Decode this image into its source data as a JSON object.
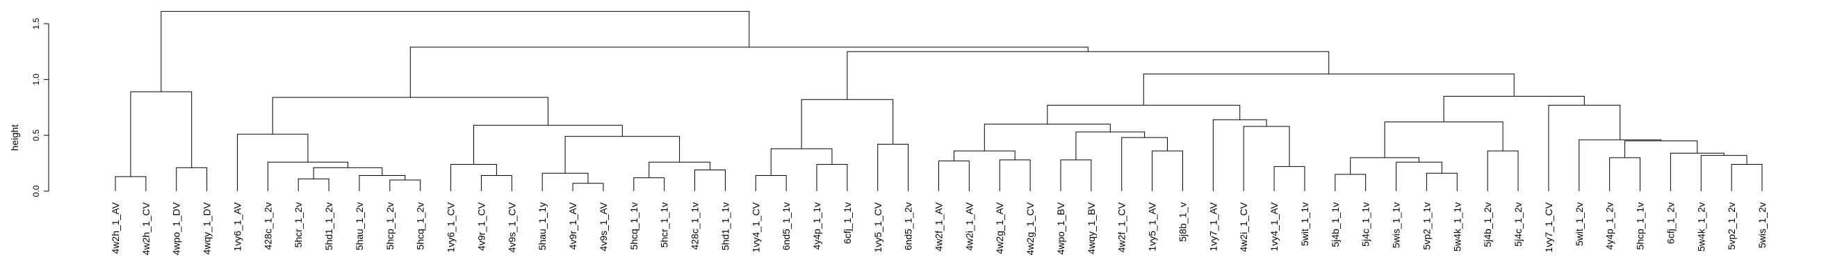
{
  "chart_data": {
    "type": "dendrogram",
    "title": "",
    "xlabel": "",
    "ylabel": "height",
    "ylim": [
      0,
      1.65
    ],
    "yticks": [
      {
        "value": 0.0,
        "label": "0.0"
      },
      {
        "value": 0.5,
        "label": "0.5"
      },
      {
        "value": 1.0,
        "label": "1.0"
      },
      {
        "value": 1.5,
        "label": "1.5"
      }
    ],
    "grid": false,
    "leaves": [
      "4w2h_1_AV",
      "4w2h_1_CV",
      "4wpo_1_DV",
      "4wqy_1_DV",
      "1vy6_1_AV",
      "428c_1_2v",
      "5hcr_1_2v",
      "5hd1_1_2v",
      "5hau_1_2v",
      "5hcp_1_2v",
      "5hcq_1_2v",
      "1vy6_1_CV",
      "4v9r_1_CV",
      "4v9s_1_CV",
      "5hau_1_1y",
      "4v9r_1_AV",
      "4v9s_1_AV",
      "5hcq_1_1v",
      "5hcr_1_1v",
      "428c_1_1v",
      "5hd1_1_1v",
      "1vy4_1_CV",
      "6nd5_1_1v",
      "4y4p_1_1v",
      "6cfj_1_1v",
      "1vy5_1_CV",
      "6nd5_1_2v",
      "4w2f_1_AV",
      "4w2i_1_AV",
      "4w2g_1_AV",
      "4w2g_1_CV",
      "4wpo_1_BV",
      "4wqy_1_BV",
      "4w2f_1_CV",
      "1vy5_1_AV",
      "5j8b_1_v",
      "1vy7_1_AV",
      "4w2i_1_CV",
      "1vy4_1_AV",
      "5wit_1_1v",
      "5j4b_1_1v",
      "5j4c_1_1v",
      "5wis_1_1v",
      "5vp2_1_1v",
      "5w4k_1_1v",
      "5j4b_1_2v",
      "5j4c_1_2v",
      "1vy7_1_CV",
      "5wit_1_2v",
      "4y4p_1_2v",
      "5hcp_1_1v",
      "6cfj_1_2v",
      "5w4k_1_2v",
      "5vp2_1_2v",
      "5wis_1_2v"
    ],
    "merges": [
      {
        "id": "m1",
        "a": "L0",
        "b": "L1",
        "height": 0.13
      },
      {
        "id": "m2",
        "a": "L2",
        "b": "L3",
        "height": 0.21
      },
      {
        "id": "m3",
        "a": "m1",
        "b": "m2",
        "height": 0.89
      },
      {
        "id": "m4",
        "a": "L6",
        "b": "L7",
        "height": 0.11
      },
      {
        "id": "m5",
        "a": "L10",
        "b": "L9",
        "height": 0.1
      },
      {
        "id": "m6",
        "a": "L8",
        "b": "m5",
        "height": 0.14
      },
      {
        "id": "m7",
        "a": "m4",
        "b": "m6",
        "height": 0.21
      },
      {
        "id": "m8",
        "a": "L5",
        "b": "m7",
        "height": 0.26
      },
      {
        "id": "m9",
        "a": "L4",
        "b": "m8",
        "height": 0.51
      },
      {
        "id": "m10",
        "a": "L12",
        "b": "L13",
        "height": 0.14
      },
      {
        "id": "m11",
        "a": "L11",
        "b": "m10",
        "height": 0.24
      },
      {
        "id": "m12",
        "a": "L15",
        "b": "L16",
        "height": 0.07
      },
      {
        "id": "m13",
        "a": "L14",
        "b": "m12",
        "height": 0.16
      },
      {
        "id": "m14",
        "a": "L17",
        "b": "L18",
        "height": 0.12
      },
      {
        "id": "m15",
        "a": "L19",
        "b": "L20",
        "height": 0.19
      },
      {
        "id": "m16",
        "a": "m14",
        "b": "m15",
        "height": 0.26
      },
      {
        "id": "m17",
        "a": "m13",
        "b": "m16",
        "height": 0.49
      },
      {
        "id": "m18",
        "a": "m11",
        "b": "m17",
        "height": 0.59
      },
      {
        "id": "m19",
        "a": "m9",
        "b": "m18",
        "height": 0.84
      },
      {
        "id": "m20",
        "a": "L21",
        "b": "L22",
        "height": 0.14
      },
      {
        "id": "m21",
        "a": "L23",
        "b": "L24",
        "height": 0.24
      },
      {
        "id": "m22",
        "a": "m20",
        "b": "m21",
        "height": 0.38
      },
      {
        "id": "m23",
        "a": "L25",
        "b": "L26",
        "height": 0.42
      },
      {
        "id": "m24",
        "a": "m22",
        "b": "m23",
        "height": 0.82
      },
      {
        "id": "m25",
        "a": "L27",
        "b": "L28",
        "height": 0.27
      },
      {
        "id": "m26",
        "a": "L29",
        "b": "L30",
        "height": 0.28
      },
      {
        "id": "m27",
        "a": "m25",
        "b": "m26",
        "height": 0.36
      },
      {
        "id": "m28",
        "a": "L31",
        "b": "L32",
        "height": 0.28
      },
      {
        "id": "m29",
        "a": "L34",
        "b": "L35",
        "height": 0.36
      },
      {
        "id": "m30",
        "a": "L33",
        "b": "m29",
        "height": 0.48
      },
      {
        "id": "m31",
        "a": "m28",
        "b": "m30",
        "height": 0.53
      },
      {
        "id": "m32",
        "a": "m27",
        "b": "m31",
        "height": 0.6
      },
      {
        "id": "m33",
        "a": "L38",
        "b": "L39",
        "height": 0.22
      },
      {
        "id": "m34",
        "a": "L37",
        "b": "m33",
        "height": 0.58
      },
      {
        "id": "m35",
        "a": "L36",
        "b": "m34",
        "height": 0.64
      },
      {
        "id": "m36",
        "a": "m32",
        "b": "m35",
        "height": 0.77
      },
      {
        "id": "m37",
        "a": "L40",
        "b": "L41",
        "height": 0.15
      },
      {
        "id": "m38",
        "a": "L43",
        "b": "L44",
        "height": 0.16
      },
      {
        "id": "m39",
        "a": "L42",
        "b": "m38",
        "height": 0.26
      },
      {
        "id": "m40",
        "a": "m37",
        "b": "m39",
        "height": 0.3
      },
      {
        "id": "m41",
        "a": "L45",
        "b": "L46",
        "height": 0.36
      },
      {
        "id": "m42",
        "a": "m40",
        "b": "m41",
        "height": 0.62
      },
      {
        "id": "m43",
        "a": "L49",
        "b": "L50",
        "height": 0.3
      },
      {
        "id": "m44",
        "a": "L53",
        "b": "L54",
        "height": 0.24
      },
      {
        "id": "m45",
        "a": "L52",
        "b": "m44",
        "height": 0.32
      },
      {
        "id": "m46",
        "a": "L51",
        "b": "m45",
        "height": 0.34
      },
      {
        "id": "m47",
        "a": "m43",
        "b": "m46",
        "height": 0.45
      },
      {
        "id": "m48",
        "a": "L48",
        "b": "m47",
        "height": 0.46
      },
      {
        "id": "m49",
        "a": "L47",
        "b": "m48",
        "height": 0.77
      },
      {
        "id": "m50",
        "a": "m42",
        "b": "m49",
        "height": 0.85
      },
      {
        "id": "m51",
        "a": "m36",
        "b": "m50",
        "height": 1.05
      },
      {
        "id": "m52",
        "a": "m24",
        "b": "m51",
        "height": 1.25
      },
      {
        "id": "m53",
        "a": "m19",
        "b": "m52",
        "height": 1.29
      },
      {
        "id": "m54",
        "a": "m3",
        "b": "m53",
        "height": 1.61
      }
    ]
  }
}
